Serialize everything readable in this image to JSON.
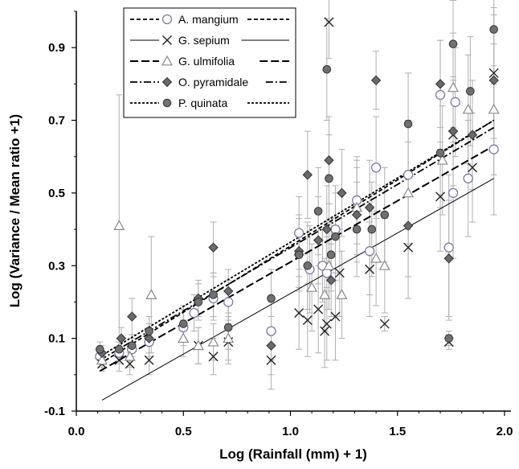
{
  "chart_data": {
    "type": "scatter",
    "xlabel": "Log (Rainfall (mm) + 1)",
    "ylabel": "Log (Variance / Mean ratio +1)",
    "xlim": [
      0.0,
      2.0
    ],
    "ylim": [
      -0.1,
      1.0
    ],
    "x_ticks": [
      "0.0",
      "0.5",
      "1.0",
      "1.5",
      "2.0"
    ],
    "x_tick_values": [
      0.0,
      0.5,
      1.0,
      1.5,
      2.0
    ],
    "y_ticks": [
      "-0.1",
      "0.1",
      "0.3",
      "0.5",
      "0.7",
      "0.9"
    ],
    "y_tick_values": [
      -0.1,
      0.1,
      0.3,
      0.5,
      0.7,
      0.9
    ],
    "legend_position": "top-left",
    "series": [
      {
        "name": "A. mangium",
        "marker": "open-circle",
        "line": "short-dash",
        "fit": [
          [
            0.11,
            0.03
          ],
          [
            1.95,
            0.7
          ]
        ],
        "points": [
          {
            "x": 0.11,
            "y": 0.05,
            "err": 0.02
          },
          {
            "x": 0.2,
            "y": 0.06,
            "err": 0.03
          },
          {
            "x": 0.26,
            "y": 0.07,
            "err": 0.03
          },
          {
            "x": 0.34,
            "y": 0.09,
            "err": 0.04
          },
          {
            "x": 0.5,
            "y": 0.13,
            "err": 0.05
          },
          {
            "x": 0.55,
            "y": 0.17,
            "err": 0.05
          },
          {
            "x": 0.64,
            "y": 0.21,
            "err": 0.06
          },
          {
            "x": 0.71,
            "y": 0.2,
            "err": 0.06
          },
          {
            "x": 0.91,
            "y": 0.12,
            "err": 0.08
          },
          {
            "x": 1.04,
            "y": 0.39,
            "err": 0.1
          },
          {
            "x": 1.09,
            "y": 0.29,
            "err": 0.12
          },
          {
            "x": 1.15,
            "y": 0.3,
            "err": 0.1
          },
          {
            "x": 1.17,
            "y": 0.28,
            "err": 0.1
          },
          {
            "x": 1.21,
            "y": 0.4,
            "err": 0.12
          },
          {
            "x": 1.31,
            "y": 0.48,
            "err": 0.12
          },
          {
            "x": 1.37,
            "y": 0.34,
            "err": 0.12
          },
          {
            "x": 1.4,
            "y": 0.57,
            "err": 0.14
          },
          {
            "x": 1.55,
            "y": 0.55,
            "err": 0.15
          },
          {
            "x": 1.7,
            "y": 0.77,
            "err": 0.15
          },
          {
            "x": 1.74,
            "y": 0.35,
            "err": 0.2
          },
          {
            "x": 1.76,
            "y": 0.5,
            "err": 0.18
          },
          {
            "x": 1.77,
            "y": 0.75,
            "err": 0.15
          },
          {
            "x": 1.83,
            "y": 0.54,
            "err": 0.16
          },
          {
            "x": 1.95,
            "y": 0.62,
            "err": 0.18
          }
        ]
      },
      {
        "name": "G. sepium",
        "marker": "x",
        "line": "solid-thin",
        "fit": [
          [
            0.12,
            -0.07
          ],
          [
            1.95,
            0.54
          ]
        ],
        "points": [
          {
            "x": 0.12,
            "y": 0.03,
            "err": 0.02
          },
          {
            "x": 0.2,
            "y": 0.04,
            "err": 0.03
          },
          {
            "x": 0.25,
            "y": 0.03,
            "err": 0.03
          },
          {
            "x": 0.34,
            "y": 0.04,
            "err": 0.04
          },
          {
            "x": 0.57,
            "y": 0.08,
            "err": 0.05
          },
          {
            "x": 0.64,
            "y": 0.05,
            "err": 0.05
          },
          {
            "x": 0.71,
            "y": 0.09,
            "err": 0.06
          },
          {
            "x": 0.91,
            "y": 0.04,
            "err": 0.08
          },
          {
            "x": 1.04,
            "y": 0.17,
            "err": 0.1
          },
          {
            "x": 1.08,
            "y": 0.15,
            "err": 0.1
          },
          {
            "x": 1.13,
            "y": 0.18,
            "err": 0.12
          },
          {
            "x": 1.16,
            "y": 0.12,
            "err": 0.1
          },
          {
            "x": 1.17,
            "y": 0.14,
            "err": 0.1
          },
          {
            "x": 1.18,
            "y": 0.97,
            "err": 0.1
          },
          {
            "x": 1.21,
            "y": 0.16,
            "err": 0.12
          },
          {
            "x": 1.23,
            "y": 0.28,
            "err": 0.12
          },
          {
            "x": 1.37,
            "y": 0.29,
            "err": 0.13
          },
          {
            "x": 1.44,
            "y": 0.14,
            "err": 0.02
          },
          {
            "x": 1.55,
            "y": 0.35,
            "err": 0.14
          },
          {
            "x": 1.7,
            "y": 0.49,
            "err": 0.15
          },
          {
            "x": 1.74,
            "y": 0.09,
            "err": 0.02
          },
          {
            "x": 1.76,
            "y": 0.66,
            "err": 0.15
          },
          {
            "x": 1.85,
            "y": 0.57,
            "err": 0.15
          },
          {
            "x": 1.95,
            "y": 0.83,
            "err": 0.18
          }
        ]
      },
      {
        "name": "G. ulmifolia",
        "marker": "open-triangle",
        "line": "long-dash",
        "fit": [
          [
            0.11,
            0.01
          ],
          [
            1.95,
            0.63
          ]
        ],
        "points": [
          {
            "x": 0.12,
            "y": 0.04,
            "err": 0.02
          },
          {
            "x": 0.2,
            "y": 0.41,
            "err": 0.36
          },
          {
            "x": 0.25,
            "y": 0.05,
            "err": 0.03
          },
          {
            "x": 0.35,
            "y": 0.22,
            "err": 0.16
          },
          {
            "x": 0.5,
            "y": 0.1,
            "err": 0.05
          },
          {
            "x": 0.57,
            "y": 0.08,
            "err": 0.05
          },
          {
            "x": 0.64,
            "y": 0.09,
            "err": 0.05
          },
          {
            "x": 0.71,
            "y": 0.1,
            "err": 0.06
          },
          {
            "x": 1.04,
            "y": 0.34,
            "err": 0.1
          },
          {
            "x": 1.1,
            "y": 0.24,
            "err": 0.12
          },
          {
            "x": 1.16,
            "y": 0.22,
            "err": 0.1
          },
          {
            "x": 1.18,
            "y": 0.3,
            "err": 0.12
          },
          {
            "x": 1.24,
            "y": 0.22,
            "err": 0.12
          },
          {
            "x": 1.31,
            "y": 0.46,
            "err": 0.13
          },
          {
            "x": 1.4,
            "y": 0.32,
            "err": 0.13
          },
          {
            "x": 1.44,
            "y": 0.3,
            "err": 0.13
          },
          {
            "x": 1.55,
            "y": 0.5,
            "err": 0.14
          },
          {
            "x": 1.71,
            "y": 0.59,
            "err": 0.15
          },
          {
            "x": 1.76,
            "y": 0.79,
            "err": 0.15
          },
          {
            "x": 1.83,
            "y": 0.73,
            "err": 0.15
          },
          {
            "x": 1.95,
            "y": 0.73,
            "err": 0.18
          }
        ]
      },
      {
        "name": "O. pyramidale",
        "marker": "filled-diamond",
        "line": "dash-dot",
        "fit": [
          [
            0.11,
            0.04
          ],
          [
            1.95,
            0.68
          ]
        ],
        "points": [
          {
            "x": 0.12,
            "y": 0.06,
            "err": 0.02
          },
          {
            "x": 0.21,
            "y": 0.1,
            "err": 0.03
          },
          {
            "x": 0.26,
            "y": 0.16,
            "err": 0.05
          },
          {
            "x": 0.34,
            "y": 0.1,
            "err": 0.04
          },
          {
            "x": 0.57,
            "y": 0.21,
            "err": 0.05
          },
          {
            "x": 0.64,
            "y": 0.35,
            "err": 0.07
          },
          {
            "x": 0.71,
            "y": 0.23,
            "err": 0.06
          },
          {
            "x": 0.91,
            "y": 0.08,
            "err": 0.08
          },
          {
            "x": 1.04,
            "y": 0.34,
            "err": 0.1
          },
          {
            "x": 1.08,
            "y": 0.55,
            "err": 0.12
          },
          {
            "x": 1.13,
            "y": 0.37,
            "err": 0.12
          },
          {
            "x": 1.17,
            "y": 0.4,
            "err": 0.12
          },
          {
            "x": 1.18,
            "y": 0.59,
            "err": 0.12
          },
          {
            "x": 1.19,
            "y": 0.26,
            "err": 0.1
          },
          {
            "x": 1.24,
            "y": 0.5,
            "err": 0.12
          },
          {
            "x": 1.31,
            "y": 0.44,
            "err": 0.13
          },
          {
            "x": 1.37,
            "y": 0.46,
            "err": 0.13
          },
          {
            "x": 1.4,
            "y": 0.81,
            "err": 0.08
          },
          {
            "x": 1.55,
            "y": 0.41,
            "err": 0.14
          },
          {
            "x": 1.7,
            "y": 0.8,
            "err": 0.12
          },
          {
            "x": 1.74,
            "y": 0.32,
            "err": 0.16
          },
          {
            "x": 1.76,
            "y": 0.67,
            "err": 0.15
          },
          {
            "x": 1.85,
            "y": 0.66,
            "err": 0.15
          },
          {
            "x": 1.95,
            "y": 0.81,
            "err": 0.18
          }
        ]
      },
      {
        "name": "P. quinata",
        "marker": "filled-circle",
        "line": "fine-dash",
        "fit": [
          [
            0.11,
            0.05
          ],
          [
            1.95,
            0.7
          ]
        ],
        "points": [
          {
            "x": 0.11,
            "y": 0.07,
            "err": 0.02
          },
          {
            "x": 0.2,
            "y": 0.07,
            "err": 0.03
          },
          {
            "x": 0.26,
            "y": 0.08,
            "err": 0.03
          },
          {
            "x": 0.34,
            "y": 0.12,
            "err": 0.04
          },
          {
            "x": 0.5,
            "y": 0.14,
            "err": 0.05
          },
          {
            "x": 0.57,
            "y": 0.2,
            "err": 0.05
          },
          {
            "x": 0.64,
            "y": 0.22,
            "err": 0.06
          },
          {
            "x": 0.71,
            "y": 0.13,
            "err": 0.06
          },
          {
            "x": 0.91,
            "y": 0.21,
            "err": 0.08
          },
          {
            "x": 1.04,
            "y": 0.33,
            "err": 0.1
          },
          {
            "x": 1.08,
            "y": 0.3,
            "err": 0.12
          },
          {
            "x": 1.13,
            "y": 0.45,
            "err": 0.12
          },
          {
            "x": 1.17,
            "y": 0.84,
            "err": 0.14
          },
          {
            "x": 1.18,
            "y": 0.54,
            "err": 0.12
          },
          {
            "x": 1.19,
            "y": 0.33,
            "err": 0.1
          },
          {
            "x": 1.21,
            "y": 0.38,
            "err": 0.12
          },
          {
            "x": 1.31,
            "y": 0.4,
            "err": 0.13
          },
          {
            "x": 1.38,
            "y": 0.4,
            "err": 0.13
          },
          {
            "x": 1.44,
            "y": 0.44,
            "err": 0.13
          },
          {
            "x": 1.55,
            "y": 0.69,
            "err": 0.14
          },
          {
            "x": 1.7,
            "y": 0.61,
            "err": 0.15
          },
          {
            "x": 1.74,
            "y": 0.1,
            "err": 0.02
          },
          {
            "x": 1.76,
            "y": 0.91,
            "err": 0.12
          },
          {
            "x": 1.84,
            "y": 0.78,
            "err": 0.15
          },
          {
            "x": 1.95,
            "y": 0.95,
            "err": 0.1
          }
        ]
      }
    ]
  },
  "style": {
    "marker_edge": "#555555",
    "marker_fill_dark": "#707070",
    "marker_fill_open": "#ffffff",
    "error_bar": "#b0b0b0",
    "fit_line": "#000000"
  }
}
